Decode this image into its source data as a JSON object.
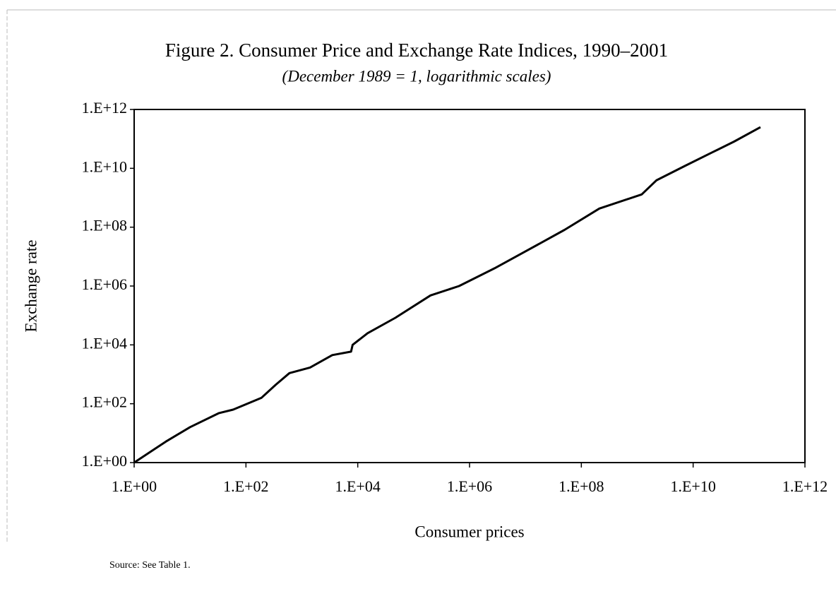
{
  "chart_data": {
    "type": "line",
    "title": "Figure 2. Consumer Price and Exchange Rate Indices, 1990–2001",
    "subtitle": "(December 1989 = 1, logarithmic scales)",
    "x_label": "Consumer prices",
    "y_label": "Exchange rate",
    "source": "Source: See Table 1.",
    "x": [
      1,
      3.7,
      10,
      33,
      59,
      190,
      340,
      600,
      1400,
      3500,
      7600,
      8100,
      15000,
      47000,
      200000,
      650000,
      2800000,
      8700000,
      50000000,
      210000000,
      1200000000,
      2200000000,
      7100000000,
      22000000000,
      54000000000,
      160000000000
    ],
    "values": [
      1,
      5.2,
      16,
      48,
      63,
      160,
      440,
      1100,
      1700,
      4500,
      5900,
      10000,
      25000,
      83000,
      480000,
      1000000,
      4000000,
      13000000,
      81000000,
      430000000,
      1300000000,
      3900000000,
      12000000000,
      35000000000,
      81000000000,
      250000000000
    ],
    "color": "#000000",
    "xlog": true,
    "ylog": true,
    "xlim": [
      1,
      1000000000000
    ],
    "ylim": [
      1,
      1000000000000
    ],
    "xticks": [
      {
        "value": 1,
        "label": "1.E+00"
      },
      {
        "value": 100,
        "label": "1.E+02"
      },
      {
        "value": 10000,
        "label": "1.E+04"
      },
      {
        "value": 1000000,
        "label": "1.E+06"
      },
      {
        "value": 100000000,
        "label": "1.E+08"
      },
      {
        "value": 10000000000,
        "label": "1.E+10"
      },
      {
        "value": 1000000000000,
        "label": "1.E+12"
      }
    ],
    "yticks": [
      {
        "value": 1,
        "label": "1.E+00"
      },
      {
        "value": 100,
        "label": "1.E+02"
      },
      {
        "value": 10000,
        "label": "1.E+04"
      },
      {
        "value": 1000000,
        "label": "1.E+06"
      },
      {
        "value": 100000000,
        "label": "1.E+08"
      },
      {
        "value": 10000000000,
        "label": "1.E+10"
      },
      {
        "value": 1000000000000,
        "label": "1.E+12"
      }
    ],
    "grid": false
  }
}
